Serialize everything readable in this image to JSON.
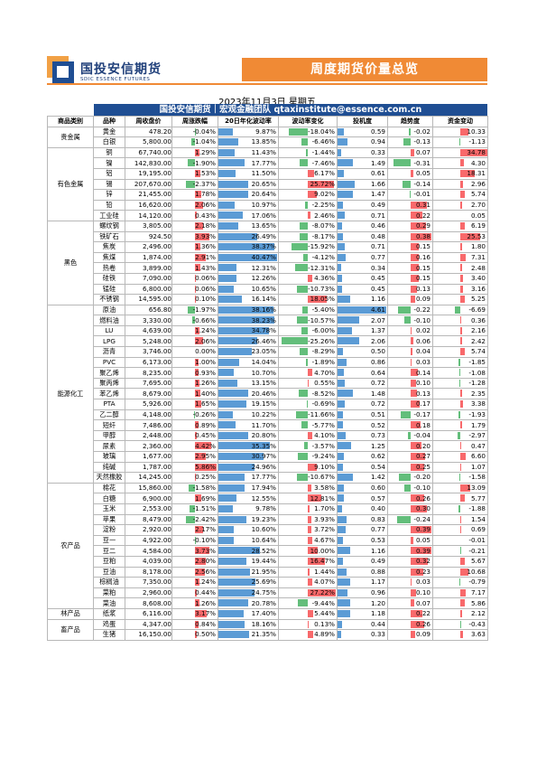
{
  "header": {
    "brand_cn": "国投安信期货",
    "brand_en": "SDIC ESSENCE FUTURES",
    "title": "周度期货价量总览",
    "date": "2023年11月3日 星期五",
    "banner": "国投安信期货｜宏观金融团队 qtaxinstitute@essence.com.cn"
  },
  "colors": {
    "up": "#f8696b",
    "down": "#63be7b",
    "vol": "#5b9bd5",
    "accent": "#f08a35",
    "brand": "#1f4e93"
  },
  "columns": [
    "商品类别",
    "品种",
    "周收盘价",
    "周涨跌幅",
    "20日年化波动率",
    "波动率变化",
    "投机度",
    "趋势度",
    "资金变动"
  ],
  "groups": [
    {
      "category": "贵金属",
      "rows": [
        {
          "name": "黄金",
          "close": "478.20",
          "chg": "-0.04%",
          "vol": "9.87%",
          "volchg": "-18.04%",
          "spec": "0.59",
          "trend": "-0.02",
          "flow": "10.33"
        },
        {
          "name": "白银",
          "close": "5,800.00",
          "chg": "-1.04%",
          "vol": "13.85%",
          "volchg": "-6.46%",
          "spec": "0.94",
          "trend": "-0.13",
          "flow": "-1.13"
        }
      ]
    },
    {
      "category": "有色金属",
      "rows": [
        {
          "name": "铜",
          "close": "67,740.00",
          "chg": "1.29%",
          "vol": "11.43%",
          "volchg": "-1.44%",
          "spec": "0.33",
          "trend": "0.07",
          "flow": "34.78"
        },
        {
          "name": "镍",
          "close": "142,830.00",
          "chg": "-1.90%",
          "vol": "17.77%",
          "volchg": "-7.46%",
          "spec": "1.49",
          "trend": "-0.31",
          "flow": "4.30"
        },
        {
          "name": "铝",
          "close": "19,195.00",
          "chg": "1.53%",
          "vol": "11.50%",
          "volchg": "6.17%",
          "spec": "0.61",
          "trend": "0.05",
          "flow": "18.31"
        },
        {
          "name": "锡",
          "close": "207,670.00",
          "chg": "-2.37%",
          "vol": "20.65%",
          "volchg": "25.72%",
          "spec": "1.66",
          "trend": "-0.14",
          "flow": "2.96"
        },
        {
          "name": "锌",
          "close": "21,455.00",
          "chg": "1.78%",
          "vol": "20.64%",
          "volchg": "9.02%",
          "spec": "1.47",
          "trend": "-0.01",
          "flow": "5.74"
        },
        {
          "name": "铅",
          "close": "16,620.00",
          "chg": "2.06%",
          "vol": "10.97%",
          "volchg": "-2.25%",
          "spec": "0.49",
          "trend": "0.31",
          "flow": "2.70"
        },
        {
          "name": "工业硅",
          "close": "14,120.00",
          "chg": "0.43%",
          "vol": "17.06%",
          "volchg": "2.46%",
          "spec": "0.71",
          "trend": "0.22",
          "flow": "0.05"
        }
      ]
    },
    {
      "category": "黑色",
      "rows": [
        {
          "name": "螺纹钢",
          "close": "3,805.00",
          "chg": "2.18%",
          "vol": "13.65%",
          "volchg": "-8.07%",
          "spec": "0.46",
          "trend": "0.29",
          "flow": "6.19"
        },
        {
          "name": "铁矿石",
          "close": "924.50",
          "chg": "3.93%",
          "vol": "26.49%",
          "volchg": "-8.17%",
          "spec": "0.48",
          "trend": "0.38",
          "flow": "25.53"
        },
        {
          "name": "焦炭",
          "close": "2,496.00",
          "chg": "1.36%",
          "vol": "38.37%",
          "volchg": "-15.92%",
          "spec": "0.71",
          "trend": "0.15",
          "flow": "1.80"
        },
        {
          "name": "焦煤",
          "close": "1,874.00",
          "chg": "2.91%",
          "vol": "40.47%",
          "volchg": "-4.12%",
          "spec": "0.77",
          "trend": "0.16",
          "flow": "7.31"
        },
        {
          "name": "热卷",
          "close": "3,899.00",
          "chg": "1.43%",
          "vol": "12.31%",
          "volchg": "-12.31%",
          "spec": "0.34",
          "trend": "0.15",
          "flow": "2.48"
        },
        {
          "name": "硅铁",
          "close": "7,090.00",
          "chg": "0.06%",
          "vol": "12.26%",
          "volchg": "4.36%",
          "spec": "0.45",
          "trend": "0.15",
          "flow": "3.40"
        },
        {
          "name": "锰硅",
          "close": "6,800.00",
          "chg": "0.06%",
          "vol": "10.65%",
          "volchg": "-10.73%",
          "spec": "0.45",
          "trend": "0.13",
          "flow": "3.16"
        },
        {
          "name": "不锈钢",
          "close": "14,595.00",
          "chg": "0.10%",
          "vol": "16.14%",
          "volchg": "18.05%",
          "spec": "1.16",
          "trend": "0.09",
          "flow": "5.25"
        }
      ]
    },
    {
      "category": "能源化工",
      "rows": [
        {
          "name": "原油",
          "close": "656.80",
          "chg": "-1.97%",
          "vol": "38.16%",
          "volchg": "-5.40%",
          "spec": "4.61",
          "trend": "-0.22",
          "flow": "-6.69"
        },
        {
          "name": "燃料油",
          "close": "3,330.00",
          "chg": "-0.66%",
          "vol": "38.23%",
          "volchg": "-10.57%",
          "spec": "2.07",
          "trend": "-0.10",
          "flow": "0.36"
        },
        {
          "name": "LU",
          "close": "4,639.00",
          "chg": "1.24%",
          "vol": "34.78%",
          "volchg": "-6.00%",
          "spec": "1.37",
          "trend": "0.02",
          "flow": "2.16"
        },
        {
          "name": "LPG",
          "close": "5,248.00",
          "chg": "2.06%",
          "vol": "26.46%",
          "volchg": "-25.26%",
          "spec": "2.06",
          "trend": "0.06",
          "flow": "2.42"
        },
        {
          "name": "沥青",
          "close": "3,746.00",
          "chg": "0.00%",
          "vol": "23.05%",
          "volchg": "-8.29%",
          "spec": "0.50",
          "trend": "0.04",
          "flow": "5.74"
        },
        {
          "name": "PVC",
          "close": "6,173.00",
          "chg": "1.00%",
          "vol": "14.04%",
          "volchg": "-1.89%",
          "spec": "0.86",
          "trend": "0.03",
          "flow": "-1.85"
        },
        {
          "name": "聚乙烯",
          "close": "8,235.00",
          "chg": "0.93%",
          "vol": "10.70%",
          "volchg": "4.70%",
          "spec": "0.64",
          "trend": "0.14",
          "flow": "-1.08"
        },
        {
          "name": "聚丙烯",
          "close": "7,695.00",
          "chg": "1.26%",
          "vol": "13.15%",
          "volchg": "0.55%",
          "spec": "0.72",
          "trend": "0.10",
          "flow": "-1.28"
        },
        {
          "name": "苯乙烯",
          "close": "8,679.00",
          "chg": "1.40%",
          "vol": "20.46%",
          "volchg": "-8.52%",
          "spec": "1.48",
          "trend": "0.13",
          "flow": "2.35"
        },
        {
          "name": "PTA",
          "close": "5,926.00",
          "chg": "1.65%",
          "vol": "19.15%",
          "volchg": "-0.69%",
          "spec": "0.72",
          "trend": "0.17",
          "flow": "3.38"
        },
        {
          "name": "乙二醇",
          "close": "4,148.00",
          "chg": "-0.26%",
          "vol": "10.22%",
          "volchg": "-11.66%",
          "spec": "0.51",
          "trend": "-0.17",
          "flow": "-1.93"
        },
        {
          "name": "短纤",
          "close": "7,486.00",
          "chg": "0.89%",
          "vol": "11.70%",
          "volchg": "-5.77%",
          "spec": "0.52",
          "trend": "0.18",
          "flow": "1.79"
        },
        {
          "name": "甲醇",
          "close": "2,448.00",
          "chg": "0.45%",
          "vol": "20.80%",
          "volchg": "4.10%",
          "spec": "0.73",
          "trend": "-0.04",
          "flow": "-2.97"
        },
        {
          "name": "尿素",
          "close": "2,360.00",
          "chg": "4.42%",
          "vol": "35.35%",
          "volchg": "-3.57%",
          "spec": "1.25",
          "trend": "0.20",
          "flow": "0.47"
        },
        {
          "name": "玻璃",
          "close": "1,677.00",
          "chg": "2.95%",
          "vol": "30.97%",
          "volchg": "-9.24%",
          "spec": "0.62",
          "trend": "0.27",
          "flow": "6.60"
        },
        {
          "name": "纯碱",
          "close": "1,787.00",
          "chg": "5.86%",
          "vol": "24.96%",
          "volchg": "9.10%",
          "spec": "0.54",
          "trend": "0.25",
          "flow": "1.07"
        },
        {
          "name": "天然橡胶",
          "close": "14,245.00",
          "chg": "0.25%",
          "vol": "17.77%",
          "volchg": "-10.67%",
          "spec": "1.42",
          "trend": "-0.20",
          "flow": "-1.58"
        }
      ]
    },
    {
      "category": "农产品",
      "rows": [
        {
          "name": "棉花",
          "close": "15,860.00",
          "chg": "-1.58%",
          "vol": "17.94%",
          "volchg": "3.58%",
          "spec": "0.60",
          "trend": "-0.10",
          "flow": "13.09"
        },
        {
          "name": "白糖",
          "close": "6,900.00",
          "chg": "1.69%",
          "vol": "12.55%",
          "volchg": "12.81%",
          "spec": "0.57",
          "trend": "0.26",
          "flow": "5.77"
        },
        {
          "name": "玉米",
          "close": "2,553.00",
          "chg": "-1.51%",
          "vol": "9.78%",
          "volchg": "1.70%",
          "spec": "0.40",
          "trend": "0.30",
          "flow": "-1.88"
        },
        {
          "name": "苹果",
          "close": "8,479.00",
          "chg": "-2.42%",
          "vol": "19.23%",
          "volchg": "3.93%",
          "spec": "0.83",
          "trend": "-0.24",
          "flow": "1.54"
        },
        {
          "name": "淀粉",
          "close": "2,920.00",
          "chg": "2.17%",
          "vol": "10.60%",
          "volchg": "3.72%",
          "spec": "0.77",
          "trend": "0.39",
          "flow": "0.69"
        },
        {
          "name": "豆一",
          "close": "4,922.00",
          "chg": "-0.10%",
          "vol": "10.64%",
          "volchg": "4.67%",
          "spec": "0.53",
          "trend": "0.05",
          "flow": "-0.01"
        },
        {
          "name": "豆二",
          "close": "4,584.00",
          "chg": "3.73%",
          "vol": "28.52%",
          "volchg": "10.00%",
          "spec": "1.16",
          "trend": "0.39",
          "flow": "-0.21"
        },
        {
          "name": "豆粕",
          "close": "4,039.00",
          "chg": "2.80%",
          "vol": "19.44%",
          "volchg": "16.47%",
          "spec": "0.49",
          "trend": "0.32",
          "flow": "5.67"
        },
        {
          "name": "豆油",
          "close": "8,178.00",
          "chg": "2.56%",
          "vol": "21.95%",
          "volchg": "1.44%",
          "spec": "0.88",
          "trend": "0.23",
          "flow": "10.68"
        },
        {
          "name": "棕榈油",
          "close": "7,350.00",
          "chg": "1.24%",
          "vol": "25.69%",
          "volchg": "4.07%",
          "spec": "1.17",
          "trend": "0.03",
          "flow": "-0.79"
        },
        {
          "name": "菜粕",
          "close": "2,960.00",
          "chg": "0.44%",
          "vol": "24.75%",
          "volchg": "27.22%",
          "spec": "0.96",
          "trend": "0.10",
          "flow": "7.17"
        },
        {
          "name": "菜油",
          "close": "8,608.00",
          "chg": "1.26%",
          "vol": "20.78%",
          "volchg": "-9.44%",
          "spec": "1.20",
          "trend": "0.07",
          "flow": "5.86"
        }
      ]
    },
    {
      "category": "林产品",
      "rows": [
        {
          "name": "纸浆",
          "close": "6,116.00",
          "chg": "3.17%",
          "vol": "17.40%",
          "volchg": "5.44%",
          "spec": "1.18",
          "trend": "0.22",
          "flow": "2.12"
        }
      ]
    },
    {
      "category": "畜产品",
      "rows": [
        {
          "name": "鸡蛋",
          "close": "4,347.00",
          "chg": "0.84%",
          "vol": "18.16%",
          "volchg": "0.13%",
          "spec": "0.44",
          "trend": "0.26",
          "flow": "-0.43"
        },
        {
          "name": "生猪",
          "close": "16,150.00",
          "chg": "0.50%",
          "vol": "21.35%",
          "volchg": "4.89%",
          "spec": "0.33",
          "trend": "0.09",
          "flow": "3.63"
        }
      ]
    }
  ]
}
